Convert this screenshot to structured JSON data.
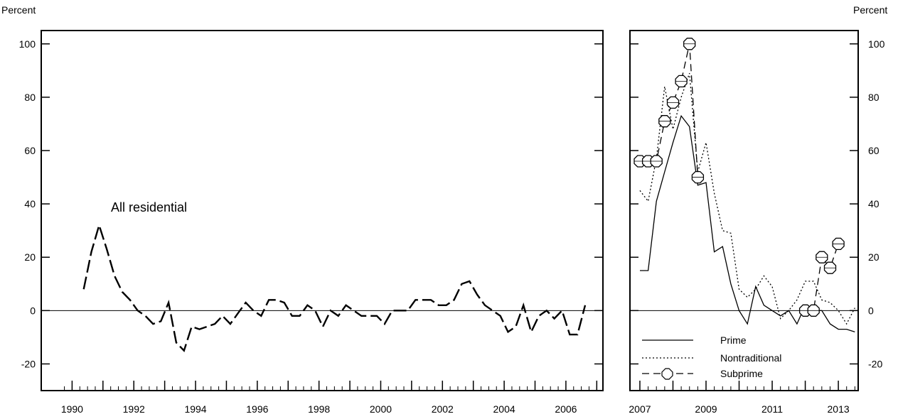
{
  "chart_data": [
    {
      "type": "line",
      "ylabel": "Percent",
      "annotation": "All residential",
      "xlim": [
        1989.0,
        2007.2
      ],
      "ylim": [
        -30,
        105
      ],
      "yticks": [
        -20,
        0,
        20,
        40,
        60,
        80,
        100
      ],
      "xtick_labels": [
        "1990",
        "1992",
        "1994",
        "1996",
        "1998",
        "2000",
        "2002",
        "2004",
        "2006"
      ],
      "grid": false,
      "series": [
        {
          "x": [
            1990.375,
            1990.625,
            1990.875,
            1991.125,
            1991.375,
            1991.625,
            1991.875,
            1992.125,
            1992.375,
            1992.625,
            1992.875,
            1993.125,
            1993.375,
            1993.625,
            1993.875,
            1994.125,
            1994.375,
            1994.625,
            1994.875,
            1995.125,
            1995.375,
            1995.625,
            1995.875,
            1996.125,
            1996.375,
            1996.625,
            1996.875,
            1997.125,
            1997.375,
            1997.625,
            1997.875,
            1998.125,
            1998.375,
            1998.625,
            1998.875,
            1999.125,
            1999.375,
            1999.625,
            1999.875,
            2000.125,
            2000.375,
            2000.625,
            2000.875,
            2001.125,
            2001.375,
            2001.625,
            2001.875,
            2002.125,
            2002.375,
            2002.625,
            2002.875,
            2003.125,
            2003.375,
            2003.625,
            2003.875,
            2004.125,
            2004.375,
            2004.625,
            2004.875,
            2005.125,
            2005.375,
            2005.625,
            2005.875,
            2006.125,
            2006.375,
            2006.625
          ],
          "values": [
            8,
            22,
            32,
            23,
            13,
            7,
            4,
            0,
            -2,
            -5,
            -4,
            3,
            -12,
            -15,
            -6,
            -7,
            -6,
            -5,
            -2,
            -5,
            -1,
            3,
            0,
            -2,
            4,
            4,
            3,
            -2,
            -2,
            2,
            0,
            -6,
            0,
            -2,
            2,
            0,
            -2,
            -2,
            -2,
            -5,
            0,
            0,
            0,
            4,
            4,
            4,
            2,
            2,
            4,
            10,
            11,
            6,
            2,
            0,
            -2,
            -8,
            -6,
            2,
            -8,
            -2,
            0,
            -3,
            0,
            -9,
            -9,
            2
          ]
        }
      ]
    },
    {
      "type": "line",
      "ylabel": "Percent",
      "xlim": [
        2006.7,
        2013.6
      ],
      "ylim": [
        -30,
        105
      ],
      "yticks": [
        -20,
        0,
        20,
        40,
        60,
        80,
        100
      ],
      "xtick_labels": [
        "2007",
        "2009",
        "2011",
        "2013"
      ],
      "grid": false,
      "legend_position": "bottom-left",
      "series": [
        {
          "name": "Prime",
          "x": [
            2007.0,
            2007.25,
            2007.5,
            2007.75,
            2008.0,
            2008.25,
            2008.5,
            2008.75,
            2009.0,
            2009.25,
            2009.5,
            2009.75,
            2010.0,
            2010.25,
            2010.5,
            2010.75,
            2011.0,
            2011.25,
            2011.5,
            2011.75,
            2012.0,
            2012.25,
            2012.5,
            2012.75,
            2013.0,
            2013.25,
            2013.5
          ],
          "values": [
            15,
            15,
            41,
            52,
            63,
            73,
            69,
            47,
            48,
            22,
            24,
            10,
            0,
            -5,
            9,
            2,
            0,
            -2,
            0,
            -5,
            2,
            0,
            0,
            -5,
            -7,
            -7,
            -8
          ]
        },
        {
          "name": "Nontraditional",
          "x": [
            2007.0,
            2007.25,
            2007.5,
            2007.75,
            2008.0,
            2008.25,
            2008.5,
            2008.75,
            2009.0,
            2009.25,
            2009.5,
            2009.75,
            2010.0,
            2010.25,
            2010.5,
            2010.75,
            2011.0,
            2011.25,
            2011.5,
            2011.75,
            2012.0,
            2012.25,
            2012.5,
            2012.75,
            2013.0,
            2013.25,
            2013.5
          ],
          "values": [
            45,
            41,
            57,
            84,
            68,
            80,
            89,
            52,
            63,
            44,
            30,
            29,
            8,
            5,
            8,
            13,
            9,
            -3,
            0,
            4,
            11,
            11,
            4,
            3,
            0,
            -5,
            1
          ]
        },
        {
          "name": "Subprime",
          "x": [
            2007.0,
            2007.25,
            2007.5,
            2007.75,
            2008.0,
            2008.25,
            2008.5,
            2008.75,
            2012.0,
            2012.25,
            2012.5,
            2012.75,
            2013.0
          ],
          "values": [
            56,
            56,
            56,
            71,
            78,
            86,
            100,
            50,
            0,
            0,
            20,
            16,
            25
          ]
        }
      ]
    }
  ]
}
